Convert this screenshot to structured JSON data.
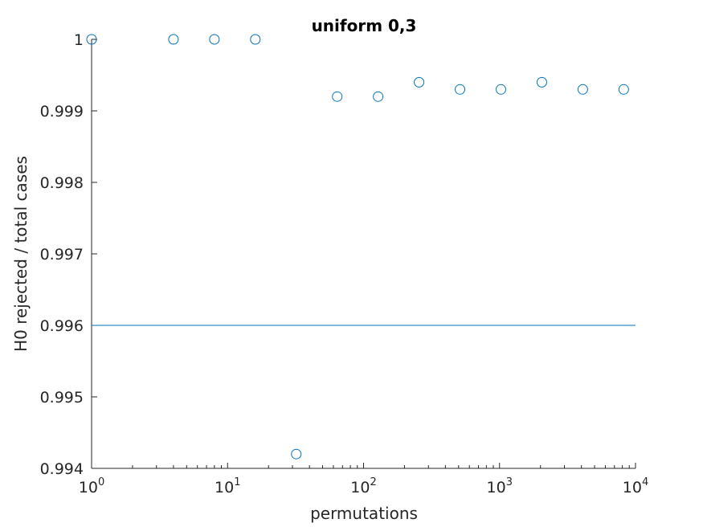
{
  "chart_data": {
    "type": "scatter",
    "title": "uniform 0,3",
    "xlabel": "permutations",
    "ylabel": "H0 rejected / total cases",
    "xscale": "log",
    "xlim": [
      1,
      10000
    ],
    "ylim": [
      0.994,
      1.0
    ],
    "x_ticks": [
      {
        "base": "10",
        "exp": "0",
        "value": 1
      },
      {
        "base": "10",
        "exp": "1",
        "value": 10
      },
      {
        "base": "10",
        "exp": "2",
        "value": 100
      },
      {
        "base": "10",
        "exp": "3",
        "value": 1000
      },
      {
        "base": "10",
        "exp": "4",
        "value": 10000
      }
    ],
    "y_ticks": [
      {
        "label": "0.994",
        "value": 0.994
      },
      {
        "label": "0.995",
        "value": 0.995
      },
      {
        "label": "0.996",
        "value": 0.996
      },
      {
        "label": "0.997",
        "value": 0.997
      },
      {
        "label": "0.998",
        "value": 0.998
      },
      {
        "label": "0.999",
        "value": 0.999
      },
      {
        "label": "1",
        "value": 1.0
      }
    ],
    "grid": false,
    "series": [
      {
        "marker": "circle",
        "color": "#0072bd",
        "x": [
          1,
          4,
          8,
          16,
          32,
          64,
          128,
          256,
          512,
          1024,
          2048,
          4096,
          8192
        ],
        "y": [
          1.0,
          1.0,
          1.0,
          1.0,
          0.9942,
          0.9992,
          0.9992,
          0.9994,
          0.9993,
          0.9993,
          0.9994,
          0.9993,
          0.9993
        ]
      }
    ],
    "reference_line": {
      "y": 0.996,
      "color": "#0072bd"
    },
    "axis_color": "#262626"
  }
}
